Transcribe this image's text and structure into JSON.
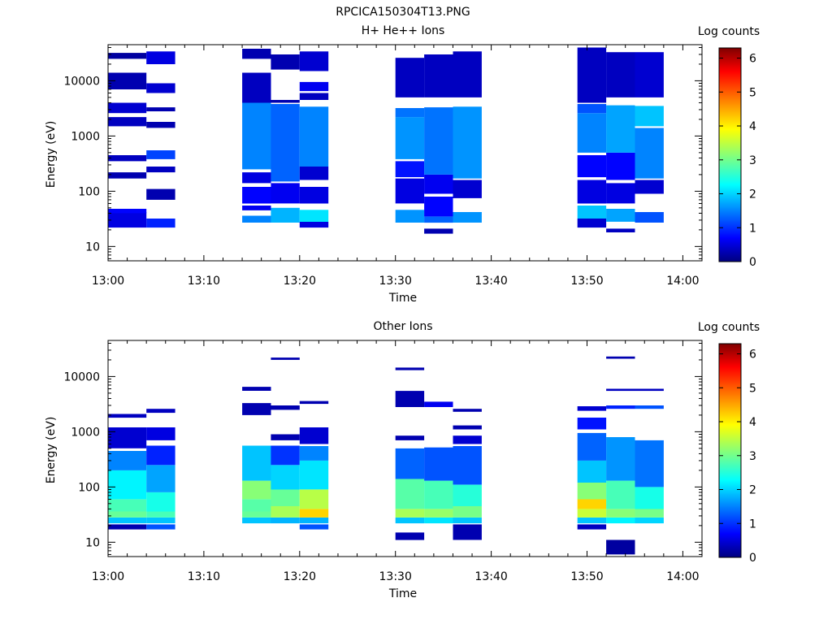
{
  "figure_title": "RPCICA150304T13.PNG",
  "chart_data": [
    {
      "type": "heatmap",
      "title": "H+ He++ Ions",
      "xlabel": "Time",
      "ylabel": "Energy (eV)",
      "xlim": [
        "13:00",
        "14:02"
      ],
      "ylim": [
        5.5,
        45000
      ],
      "log_y": true,
      "xticks": [
        "13:00",
        "13:10",
        "13:20",
        "13:30",
        "13:40",
        "13:50",
        "14:00"
      ],
      "yticks": [
        10,
        100,
        1000,
        10000
      ],
      "yticklabels": [
        "10",
        "100",
        "1000",
        "10000"
      ],
      "colorbar": {
        "label": "Log counts",
        "min": 0,
        "max": 6.3,
        "ticks": [
          0,
          1,
          2,
          3,
          4,
          5,
          6
        ]
      },
      "columns": [
        {
          "start": "13:00",
          "end": "13:04",
          "bands": [
            [
              22,
              42,
              0.6
            ],
            [
              40,
              48,
              0.8
            ],
            [
              170,
              220,
              0.3
            ],
            [
              350,
              450,
              0.4
            ],
            [
              1500,
              2200,
              0.4
            ],
            [
              2600,
              4000,
              0.5
            ],
            [
              7000,
              14000,
              0.3
            ],
            [
              25000,
              32000,
              0.2
            ]
          ]
        },
        {
          "start": "13:04",
          "end": "13:07",
          "bands": [
            [
              22,
              32,
              1.0
            ],
            [
              70,
              110,
              0.3
            ],
            [
              220,
              280,
              0.4
            ],
            [
              380,
              550,
              1.2
            ],
            [
              1400,
              1800,
              0.3
            ],
            [
              2800,
              3300,
              0.3
            ],
            [
              6000,
              9000,
              0.5
            ],
            [
              20000,
              34000,
              0.6
            ]
          ]
        },
        {
          "start": "13:14",
          "end": "13:17",
          "bands": [
            [
              27,
              36,
              1.6
            ],
            [
              45,
              55,
              0.7
            ],
            [
              60,
              120,
              0.8
            ],
            [
              140,
              220,
              0.6
            ],
            [
              250,
              4000,
              1.6
            ],
            [
              4000,
              14000,
              0.4
            ],
            [
              25000,
              38000,
              0.3
            ]
          ]
        },
        {
          "start": "13:17",
          "end": "13:20",
          "bands": [
            [
              27,
              50,
              1.9
            ],
            [
              60,
              140,
              0.7
            ],
            [
              150,
              3800,
              1.4
            ],
            [
              4000,
              4500,
              0.3
            ],
            [
              16000,
              30000,
              0.3
            ]
          ]
        },
        {
          "start": "13:20",
          "end": "13:23",
          "bands": [
            [
              22,
              28,
              0.6
            ],
            [
              28,
              46,
              2.2
            ],
            [
              60,
              120,
              0.6
            ],
            [
              160,
              280,
              0.5
            ],
            [
              280,
              3400,
              1.6
            ],
            [
              4500,
              6000,
              0.4
            ],
            [
              6500,
              9500,
              0.7
            ],
            [
              15000,
              34000,
              0.5
            ]
          ]
        },
        {
          "start": "13:30",
          "end": "13:33",
          "bands": [
            [
              27,
              46,
              1.7
            ],
            [
              60,
              170,
              0.6
            ],
            [
              180,
              350,
              0.9
            ],
            [
              380,
              2200,
              1.7
            ],
            [
              2200,
              3200,
              1.5
            ],
            [
              5000,
              26000,
              0.4
            ]
          ]
        },
        {
          "start": "13:33",
          "end": "13:36",
          "bands": [
            [
              17,
              21,
              0.3
            ],
            [
              27,
              35,
              1.4
            ],
            [
              35,
              80,
              0.8
            ],
            [
              90,
              200,
              0.7
            ],
            [
              200,
              3300,
              1.5
            ],
            [
              5000,
              30000,
              0.4
            ]
          ]
        },
        {
          "start": "13:36",
          "end": "13:39",
          "bands": [
            [
              27,
              42,
              1.7
            ],
            [
              75,
              160,
              0.5
            ],
            [
              170,
              3400,
              1.7
            ],
            [
              5000,
              34000,
              0.4
            ]
          ]
        },
        {
          "start": "13:49",
          "end": "13:52",
          "bands": [
            [
              22,
              32,
              0.5
            ],
            [
              32,
              55,
              2.0
            ],
            [
              60,
              160,
              0.6
            ],
            [
              180,
              450,
              0.8
            ],
            [
              500,
              2600,
              1.6
            ],
            [
              2600,
              3800,
              1.3
            ],
            [
              4000,
              40000,
              0.4
            ]
          ]
        },
        {
          "start": "13:52",
          "end": "13:55",
          "bands": [
            [
              18,
              21,
              0.4
            ],
            [
              28,
              48,
              1.8
            ],
            [
              60,
              140,
              0.6
            ],
            [
              160,
              500,
              0.8
            ],
            [
              500,
              3600,
              1.8
            ],
            [
              5000,
              33000,
              0.4
            ]
          ]
        },
        {
          "start": "13:55",
          "end": "13:58",
          "bands": [
            [
              27,
              42,
              1.3
            ],
            [
              90,
              160,
              0.5
            ],
            [
              170,
              1400,
              1.6
            ],
            [
              1500,
              3500,
              2.0
            ],
            [
              5000,
              33000,
              0.5
            ]
          ]
        }
      ]
    },
    {
      "type": "heatmap",
      "title": "Other Ions",
      "xlabel": "Time",
      "ylabel": "Energy (eV)",
      "xlim": [
        "13:00",
        "14:02"
      ],
      "ylim": [
        5.5,
        45000
      ],
      "log_y": true,
      "xticks": [
        "13:00",
        "13:10",
        "13:20",
        "13:30",
        "13:40",
        "13:50",
        "14:00"
      ],
      "yticks": [
        10,
        100,
        1000,
        10000
      ],
      "yticklabels": [
        "10",
        "100",
        "1000",
        "10000"
      ],
      "colorbar": {
        "label": "Log counts",
        "min": 0,
        "max": 6.3,
        "ticks": [
          0,
          1,
          2,
          3,
          4,
          5,
          6
        ]
      },
      "columns": [
        {
          "start": "13:00",
          "end": "13:04",
          "bands": [
            [
              17,
              21,
              0.3
            ],
            [
              22,
              28,
              2.0
            ],
            [
              28,
              36,
              3.0
            ],
            [
              36,
              60,
              2.8
            ],
            [
              60,
              200,
              2.3
            ],
            [
              200,
              450,
              1.6
            ],
            [
              500,
              1200,
              0.5
            ],
            [
              1800,
              2100,
              0.4
            ]
          ]
        },
        {
          "start": "13:04",
          "end": "13:07",
          "bands": [
            [
              17,
              21,
              1.3
            ],
            [
              22,
              28,
              2.0
            ],
            [
              28,
              36,
              2.8
            ],
            [
              36,
              80,
              2.5
            ],
            [
              80,
              250,
              1.8
            ],
            [
              250,
              560,
              1.0
            ],
            [
              700,
              1200,
              0.6
            ],
            [
              2200,
              2600,
              0.4
            ]
          ]
        },
        {
          "start": "13:14",
          "end": "13:17",
          "bands": [
            [
              22,
              28,
              2.0
            ],
            [
              28,
              36,
              3.0
            ],
            [
              36,
              60,
              2.9
            ],
            [
              60,
              130,
              3.2
            ],
            [
              130,
              560,
              2.0
            ],
            [
              2000,
              3300,
              0.3
            ],
            [
              5500,
              6500,
              0.3
            ]
          ]
        },
        {
          "start": "13:17",
          "end": "13:20",
          "bands": [
            [
              22,
              28,
              1.9
            ],
            [
              28,
              45,
              3.4
            ],
            [
              45,
              90,
              3.0
            ],
            [
              90,
              250,
              2.1
            ],
            [
              250,
              560,
              1.1
            ],
            [
              700,
              900,
              0.3
            ],
            [
              2500,
              3000,
              0.3
            ],
            [
              20000,
              22000,
              0.3
            ]
          ]
        },
        {
          "start": "13:20",
          "end": "13:23",
          "bands": [
            [
              17,
              21,
              1.3
            ],
            [
              22,
              28,
              1.9
            ],
            [
              28,
              40,
              4.2
            ],
            [
              40,
              90,
              3.5
            ],
            [
              90,
              300,
              2.2
            ],
            [
              300,
              550,
              1.6
            ],
            [
              600,
              1200,
              0.5
            ],
            [
              3200,
              3600,
              0.3
            ]
          ]
        },
        {
          "start": "13:30",
          "end": "13:33",
          "bands": [
            [
              11,
              15,
              0.3
            ],
            [
              22,
              28,
              2.0
            ],
            [
              28,
              40,
              3.4
            ],
            [
              40,
              140,
              2.9
            ],
            [
              140,
              500,
              1.4
            ],
            [
              700,
              850,
              0.3
            ],
            [
              2800,
              5500,
              0.3
            ],
            [
              13000,
              14500,
              0.3
            ]
          ]
        },
        {
          "start": "13:33",
          "end": "13:36",
          "bands": [
            [
              22,
              28,
              2.2
            ],
            [
              28,
              40,
              3.3
            ],
            [
              40,
              130,
              2.8
            ],
            [
              130,
              520,
              1.3
            ],
            [
              2800,
              3500,
              0.7
            ]
          ]
        },
        {
          "start": "13:36",
          "end": "13:39",
          "bands": [
            [
              11,
              21,
              0.3
            ],
            [
              22,
              28,
              2.0
            ],
            [
              28,
              45,
              3.1
            ],
            [
              45,
              110,
              2.6
            ],
            [
              110,
              550,
              1.3
            ],
            [
              600,
              850,
              0.5
            ],
            [
              1100,
              1300,
              0.3
            ],
            [
              2300,
              2600,
              0.3
            ]
          ]
        },
        {
          "start": "13:49",
          "end": "13:52",
          "bands": [
            [
              17,
              21,
              0.4
            ],
            [
              22,
              28,
              2.0
            ],
            [
              28,
              40,
              3.6
            ],
            [
              40,
              60,
              4.2
            ],
            [
              60,
              120,
              3.2
            ],
            [
              120,
              300,
              2.0
            ],
            [
              300,
              950,
              1.4
            ],
            [
              1100,
              1800,
              0.9
            ],
            [
              2400,
              2900,
              0.5
            ]
          ]
        },
        {
          "start": "13:52",
          "end": "13:55",
          "bands": [
            [
              6,
              11,
              0.2
            ],
            [
              22,
              28,
              2.3
            ],
            [
              28,
              40,
              3.2
            ],
            [
              40,
              130,
              2.8
            ],
            [
              130,
              800,
              1.7
            ],
            [
              2600,
              3000,
              1.0
            ],
            [
              5500,
              6000,
              0.4
            ],
            [
              21000,
              23000,
              0.3
            ]
          ]
        },
        {
          "start": "13:55",
          "end": "13:58",
          "bands": [
            [
              22,
              28,
              2.1
            ],
            [
              28,
              40,
              3.1
            ],
            [
              40,
              100,
              2.5
            ],
            [
              100,
              700,
              1.5
            ],
            [
              2600,
              3000,
              1.3
            ],
            [
              5500,
              6000,
              0.4
            ]
          ]
        }
      ]
    }
  ]
}
